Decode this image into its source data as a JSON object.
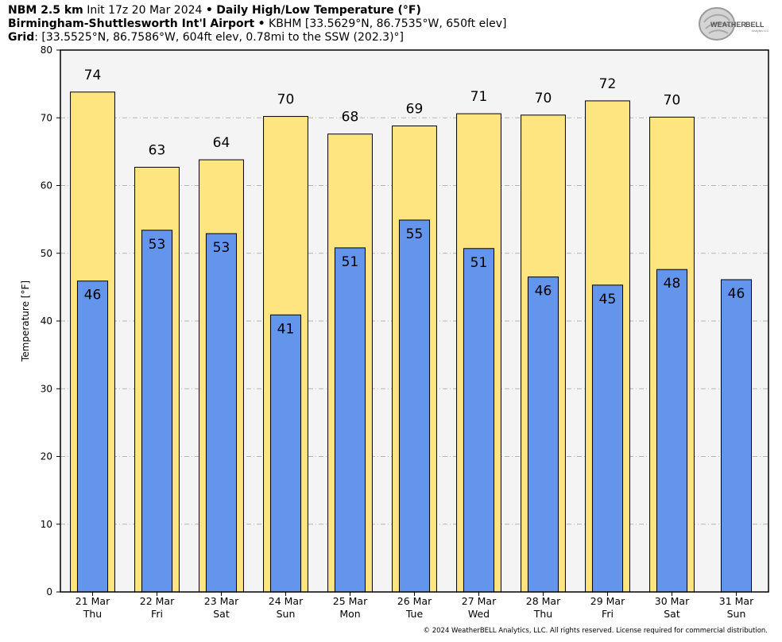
{
  "header": {
    "line1_bold": "NBM 2.5 km",
    "line1_init": "Init 17z 20 Mar 2024",
    "line1_sep": "•",
    "line1_title": "Daily High/Low Temperature (°F)",
    "line2_bold": "Birmingham-Shuttlesworth Int'l Airport",
    "line2_sep": "•",
    "line2_rest": "KBHM [33.5629°N, 86.7535°W, 650ft elev]",
    "line3_bold": "Grid",
    "line3_rest": ": [33.5525°N, 86.7586°W, 604ft elev, 0.78mi to the SSW (202.3)°]"
  },
  "logo": {
    "text_a": "WEATHER",
    "text_b": "BELL",
    "small": "Analytics LLC"
  },
  "footer": {
    "text": "© 2024 WeatherBELL Analytics, LLC. All rights reserved. License required for commercial distribution."
  },
  "colors": {
    "high_fill": "#ffe57f",
    "low_fill": "#6495ed",
    "plot_bg": "#f4f4f4",
    "grid": "#b4b4b4"
  },
  "chart_data": {
    "type": "bar",
    "ylabel": "Temperature [°F]",
    "ylim": [
      0,
      80
    ],
    "yticks": [
      0,
      10,
      20,
      30,
      40,
      50,
      60,
      70,
      80
    ],
    "grid": true,
    "categories": [
      {
        "date": "21 Mar",
        "day": "Thu"
      },
      {
        "date": "22 Mar",
        "day": "Fri"
      },
      {
        "date": "23 Mar",
        "day": "Sat"
      },
      {
        "date": "24 Mar",
        "day": "Sun"
      },
      {
        "date": "25 Mar",
        "day": "Mon"
      },
      {
        "date": "26 Mar",
        "day": "Tue"
      },
      {
        "date": "27 Mar",
        "day": "Wed"
      },
      {
        "date": "28 Mar",
        "day": "Thu"
      },
      {
        "date": "29 Mar",
        "day": "Fri"
      },
      {
        "date": "30 Mar",
        "day": "Sat"
      },
      {
        "date": "31 Mar",
        "day": "Sun"
      }
    ],
    "series": [
      {
        "key": "high",
        "values": [
          73.8,
          62.7,
          63.8,
          70.2,
          67.6,
          68.8,
          70.6,
          70.4,
          72.5,
          70.1,
          null
        ],
        "labels": [
          "74",
          "63",
          "64",
          "70",
          "68",
          "69",
          "71",
          "70",
          "72",
          "70",
          ""
        ]
      },
      {
        "key": "low",
        "values": [
          45.9,
          53.4,
          52.9,
          40.9,
          50.8,
          54.9,
          50.7,
          46.5,
          45.3,
          47.6,
          46.1
        ],
        "labels": [
          "46",
          "53",
          "53",
          "41",
          "51",
          "55",
          "51",
          "46",
          "45",
          "48",
          "46"
        ]
      }
    ]
  }
}
